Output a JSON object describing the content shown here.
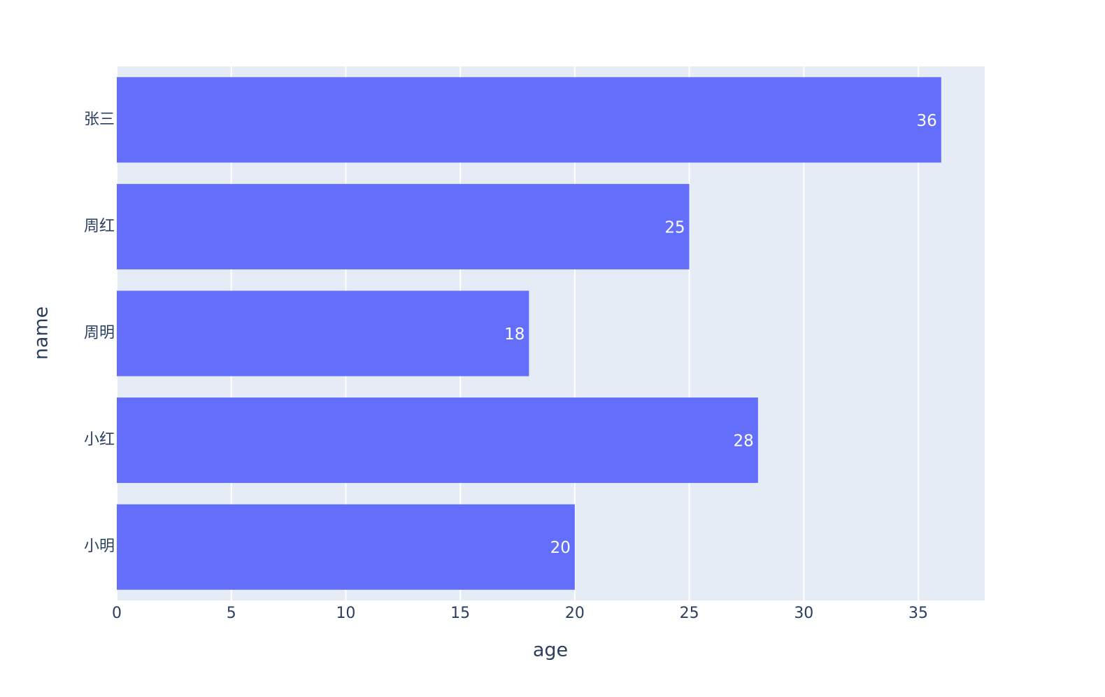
{
  "chart_data": {
    "type": "bar",
    "orientation": "horizontal",
    "categories": [
      "小明",
      "小红",
      "周明",
      "周红",
      "张三"
    ],
    "values": [
      20,
      28,
      18,
      25,
      36
    ],
    "color": "#636efa",
    "xlim": [
      0,
      37.9
    ],
    "xticks": [
      0,
      5,
      10,
      15,
      20,
      25,
      30,
      35
    ],
    "x_label": "age",
    "y_label": "name",
    "grid": true
  }
}
